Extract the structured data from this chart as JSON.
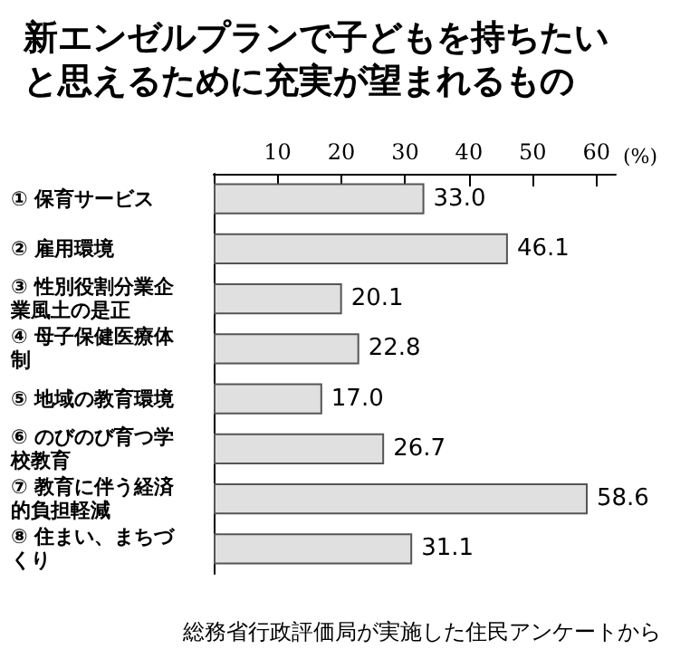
{
  "chart_data": {
    "type": "bar",
    "orientation": "horizontal",
    "title": "新エンゼルプランで子どもを持ちたいと思えるために充実が望まれるもの",
    "xlabel": "(%)",
    "categories": [
      "① 保育サービス",
      "② 雇用環境",
      "③ 性別役割分業企業風土の是正",
      "④ 母子保健医療体制",
      "⑤ 地域の教育環境",
      "⑥ のびのび育つ学校教育",
      "⑦ 教育に伴う経済的負担軽減",
      "⑧ 住まい、まちづくり"
    ],
    "values": [
      33.0,
      46.1,
      20.1,
      22.8,
      17.0,
      26.7,
      58.6,
      31.1
    ],
    "value_labels": [
      "33.0",
      "46.1",
      "20.1",
      "22.8",
      "17.0",
      "26.7",
      "58.6",
      "31.1"
    ],
    "color": "#e0e0e0",
    "xlim": [
      0,
      63
    ],
    "xticks": [
      {
        "value": 0,
        "label": null
      },
      10,
      20,
      30,
      40,
      50,
      60
    ],
    "grid": false,
    "annotations": [
      "総務省行政評価局が実施した住民アンケートから"
    ]
  }
}
